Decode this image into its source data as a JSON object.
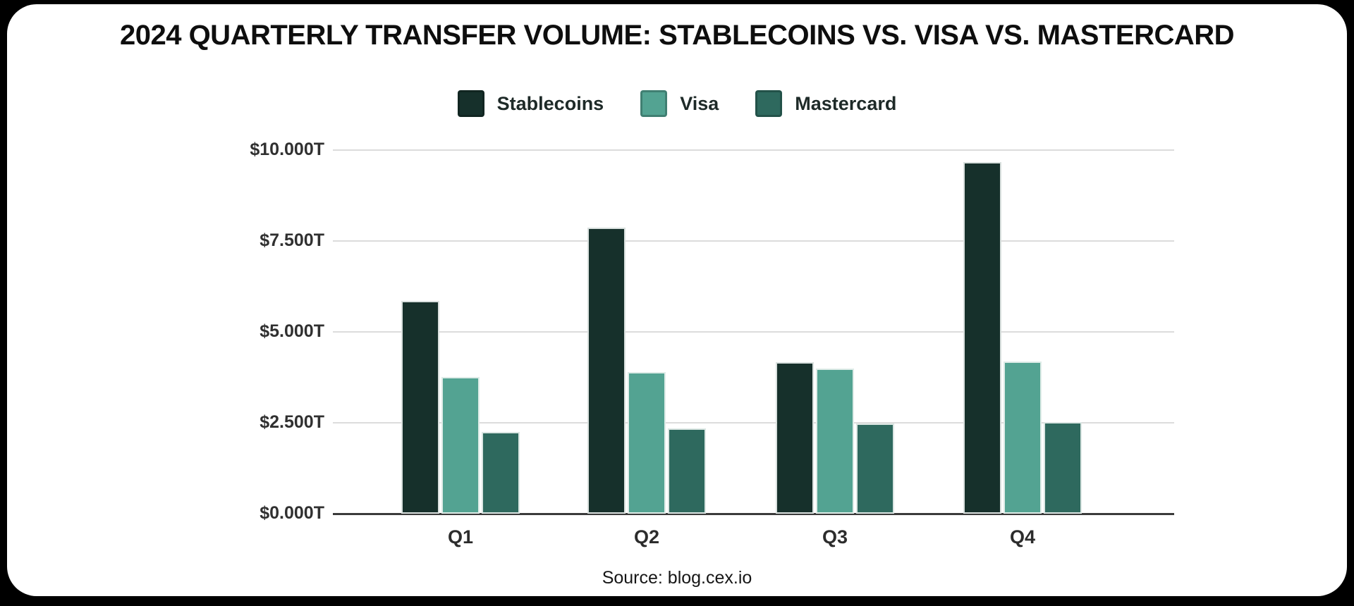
{
  "title": "2024 QUARTERLY TRANSFER VOLUME: STABLECOINS VS. VISA VS. MASTERCARD",
  "source": "Source: blog.cex.io",
  "colors": {
    "stablecoins": "#16302b",
    "visa": "#53a392",
    "mastercard": "#2e695e",
    "card_background": "#ffffff",
    "page_background": "#000000",
    "gridline": "#dcdcdc",
    "axis": "#3b3b3b"
  },
  "chart_data": {
    "type": "bar",
    "title": "2024 QUARTERLY TRANSFER VOLUME: STABLECOINS VS. VISA VS. MASTERCARD",
    "unit": "trillions USD",
    "categories": [
      "Q1",
      "Q2",
      "Q3",
      "Q4"
    ],
    "series": [
      {
        "name": "Stablecoins",
        "color": "#16302b",
        "values": [
          5.85,
          7.87,
          4.17,
          9.67
        ]
      },
      {
        "name": "Visa",
        "color": "#53a392",
        "values": [
          3.76,
          3.9,
          3.99,
          4.18
        ]
      },
      {
        "name": "Mastercard",
        "color": "#2e695e",
        "values": [
          2.25,
          2.34,
          2.48,
          2.52
        ]
      }
    ],
    "y_ticks": {
      "labels": [
        "$10.000T",
        "$7.500T",
        "$5.000T",
        "$2.500T",
        "$0.000T"
      ],
      "values": [
        10,
        7.5,
        5,
        2.5,
        0
      ]
    },
    "ylim": [
      0,
      10
    ],
    "grid": true,
    "legend_position": "top",
    "xlabel": "",
    "ylabel": ""
  }
}
